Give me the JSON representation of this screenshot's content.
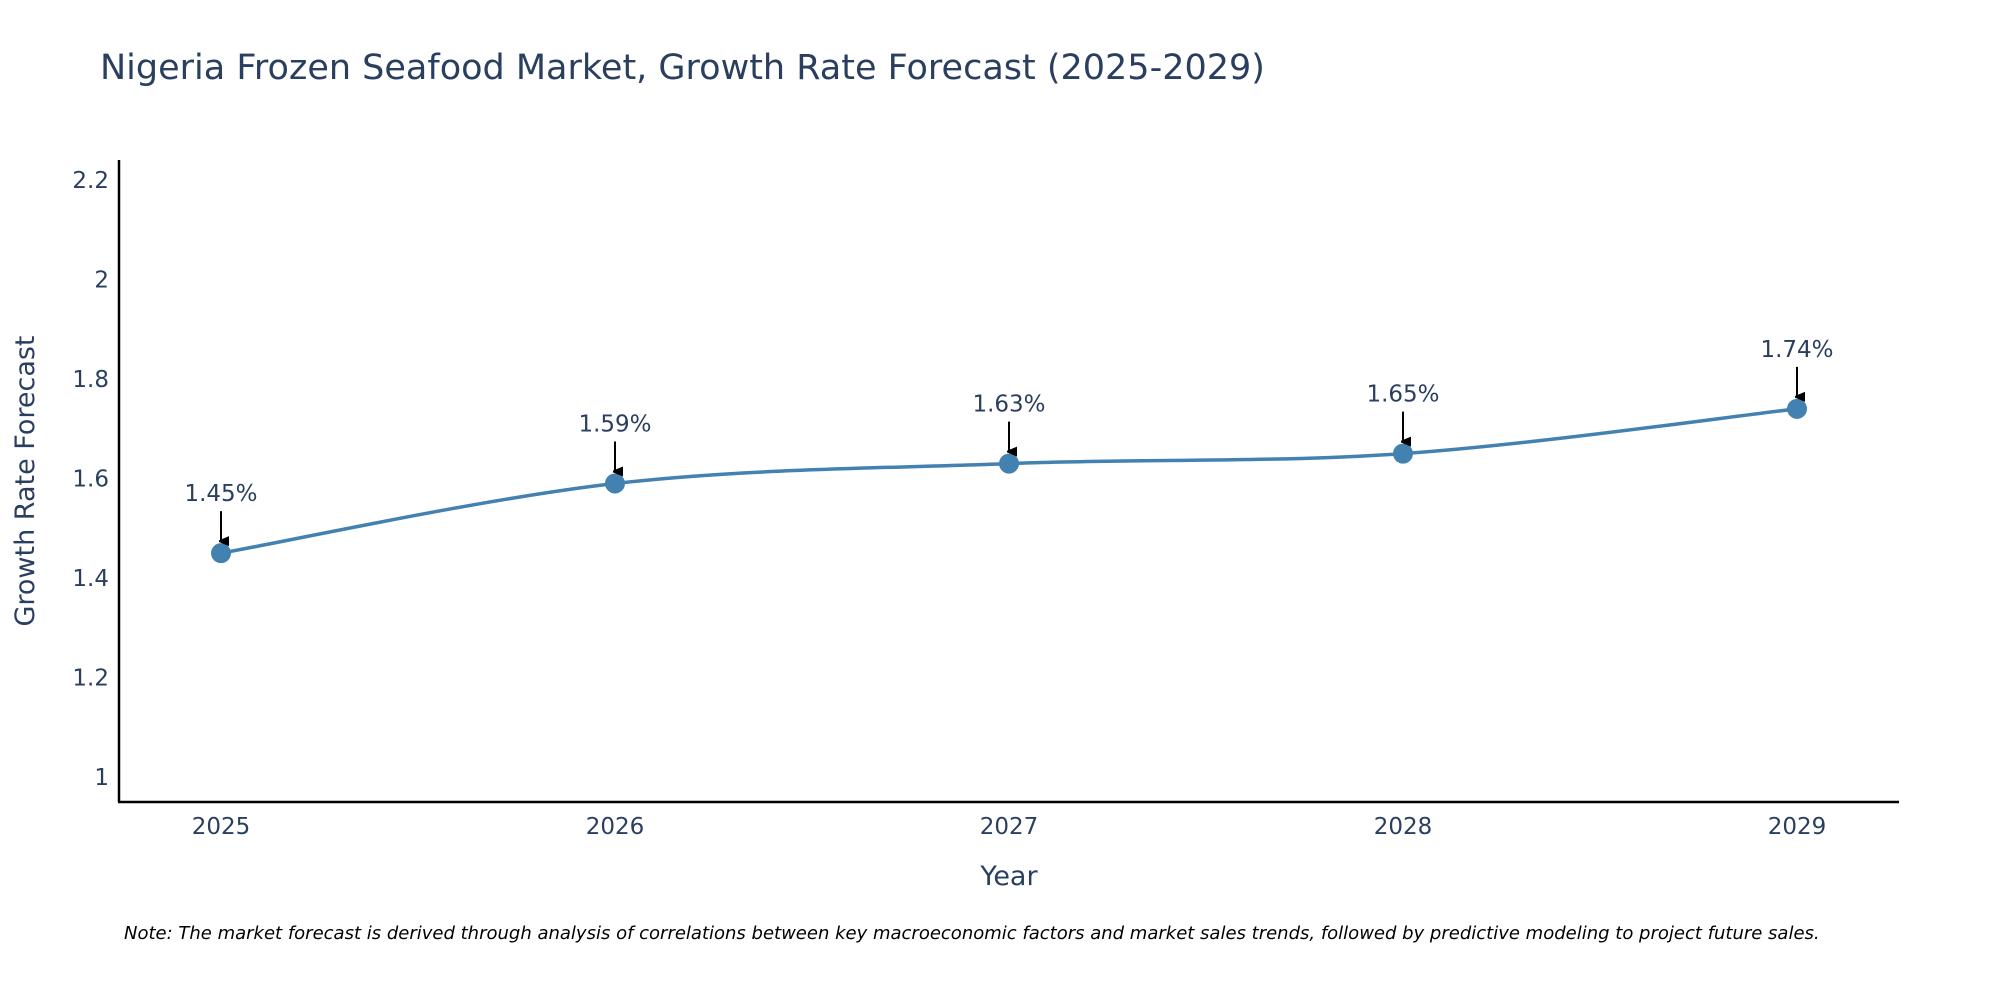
{
  "chart_data": {
    "type": "line",
    "title": "Nigeria Frozen Seafood Market, Growth Rate Forecast (2025-2029)",
    "xlabel": "Year",
    "ylabel": "Growth Rate Forecast",
    "categories": [
      "2025",
      "2026",
      "2027",
      "2028",
      "2029"
    ],
    "series": [
      {
        "name": "Growth Rate Forecast",
        "values": [
          1.45,
          1.59,
          1.63,
          1.65,
          1.74
        ],
        "labels": [
          "1.45%",
          "1.59%",
          "1.63%",
          "1.65%",
          "1.74%"
        ]
      }
    ],
    "ylim": [
      0.95,
      2.24
    ],
    "yticks": [
      1,
      1.2,
      1.4,
      1.6,
      1.8,
      2,
      2.2
    ],
    "ytick_labels": [
      "1",
      "1.2",
      "1.4",
      "1.6",
      "1.8",
      "2",
      "2.2"
    ],
    "grid": false,
    "line_shape": "spline",
    "colors": {
      "line": "#4281b0",
      "marker": "#4281b0",
      "arrow": "#000000",
      "axis": "#000000",
      "text": "#2a3f5f"
    },
    "note": "Note: The market forecast is derived through analysis of correlations between key macroeconomic factors and market sales trends, followed by predictive modeling to project future sales."
  }
}
